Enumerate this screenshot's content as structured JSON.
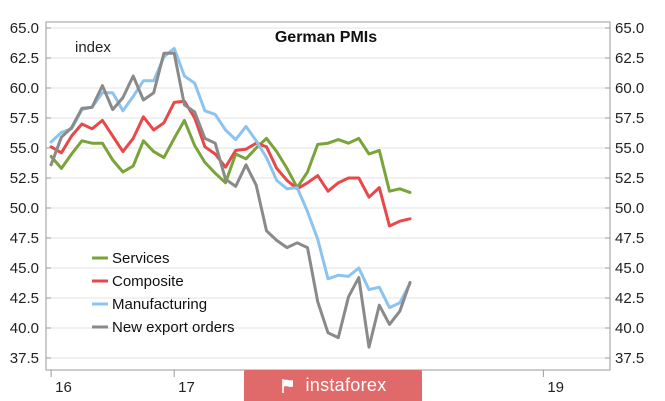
{
  "watermark": {
    "text": "instaforex",
    "icon": "flag-icon",
    "color": "#e06a6a"
  },
  "chart_data": {
    "type": "line",
    "title": "German PMIs",
    "unit_label": "index",
    "ylim": [
      36.5,
      65.5
    ],
    "y_ticks": [
      37.5,
      40.0,
      42.5,
      45.0,
      47.5,
      50.0,
      52.5,
      55.0,
      57.5,
      60.0,
      62.5,
      65.0
    ],
    "y_tick_labels": [
      "37.5",
      "40.0",
      "42.5",
      "45.0",
      "47.5",
      "50.0",
      "52.5",
      "55.0",
      "57.5",
      "60.0",
      "62.5",
      "65.0"
    ],
    "x_ticks": [
      {
        "x": 0,
        "label": "16"
      },
      {
        "x": 12,
        "label": "17"
      },
      {
        "x": 24,
        "label": ""
      },
      {
        "x": 36,
        "label": ""
      },
      {
        "x": 48,
        "label": "19"
      }
    ],
    "xlim": [
      -0.5,
      54.5
    ],
    "grid": true,
    "legend_position": "bottom-left",
    "series": [
      {
        "name": "Services",
        "color": "#7aa33a",
        "values": [
          54.3,
          53.3,
          54.5,
          55.6,
          55.4,
          55.4,
          54.0,
          53.0,
          53.5,
          55.6,
          54.7,
          54.2,
          55.8,
          57.3,
          55.2,
          53.8,
          52.9,
          52.1,
          54.5,
          54.1,
          55.0,
          55.8,
          54.7,
          53.3,
          51.7,
          53.0,
          55.3,
          55.4,
          55.7,
          55.4,
          55.8,
          54.5,
          54.8,
          51.4,
          51.6,
          51.3
        ],
        "x_start": 0
      },
      {
        "name": "Composite",
        "color": "#e8484a",
        "values": [
          55.1,
          54.6,
          56.0,
          57.0,
          56.6,
          57.3,
          56.0,
          54.7,
          55.8,
          57.6,
          56.5,
          57.1,
          58.8,
          58.9,
          57.5,
          55.1,
          54.5,
          53.4,
          54.8,
          54.9,
          55.4,
          55.1,
          53.3,
          52.3,
          51.6,
          52.1,
          52.7,
          51.4,
          52.1,
          52.5,
          52.5,
          50.9,
          51.7,
          48.5,
          48.9,
          49.1
        ],
        "x_start": 0
      },
      {
        "name": "Manufacturing",
        "color": "#8cc4f0",
        "values": [
          55.5,
          56.3,
          56.6,
          58.2,
          58.4,
          59.6,
          59.6,
          58.1,
          59.3,
          60.6,
          60.6,
          62.6,
          63.3,
          61.0,
          60.4,
          58.1,
          57.8,
          56.5,
          55.7,
          56.8,
          55.6,
          54.2,
          52.3,
          51.6,
          51.7,
          49.7,
          47.4,
          44.1,
          44.4,
          44.3,
          45.0,
          43.2,
          43.4,
          41.7,
          42.1,
          43.7
        ],
        "x_start": 0
      },
      {
        "name": "New export orders",
        "color": "#8a8a8a",
        "values": [
          53.6,
          55.9,
          56.7,
          58.3,
          58.4,
          60.2,
          58.2,
          59.2,
          61.0,
          59.0,
          59.6,
          62.9,
          62.9,
          58.6,
          58.0,
          55.8,
          55.4,
          52.4,
          51.8,
          53.6,
          51.9,
          48.1,
          47.3,
          46.7,
          47.1,
          46.7,
          42.2,
          39.6,
          39.2,
          42.6,
          44.2,
          38.4,
          41.9,
          40.3,
          41.4,
          43.8
        ],
        "x_start": 0
      }
    ]
  }
}
